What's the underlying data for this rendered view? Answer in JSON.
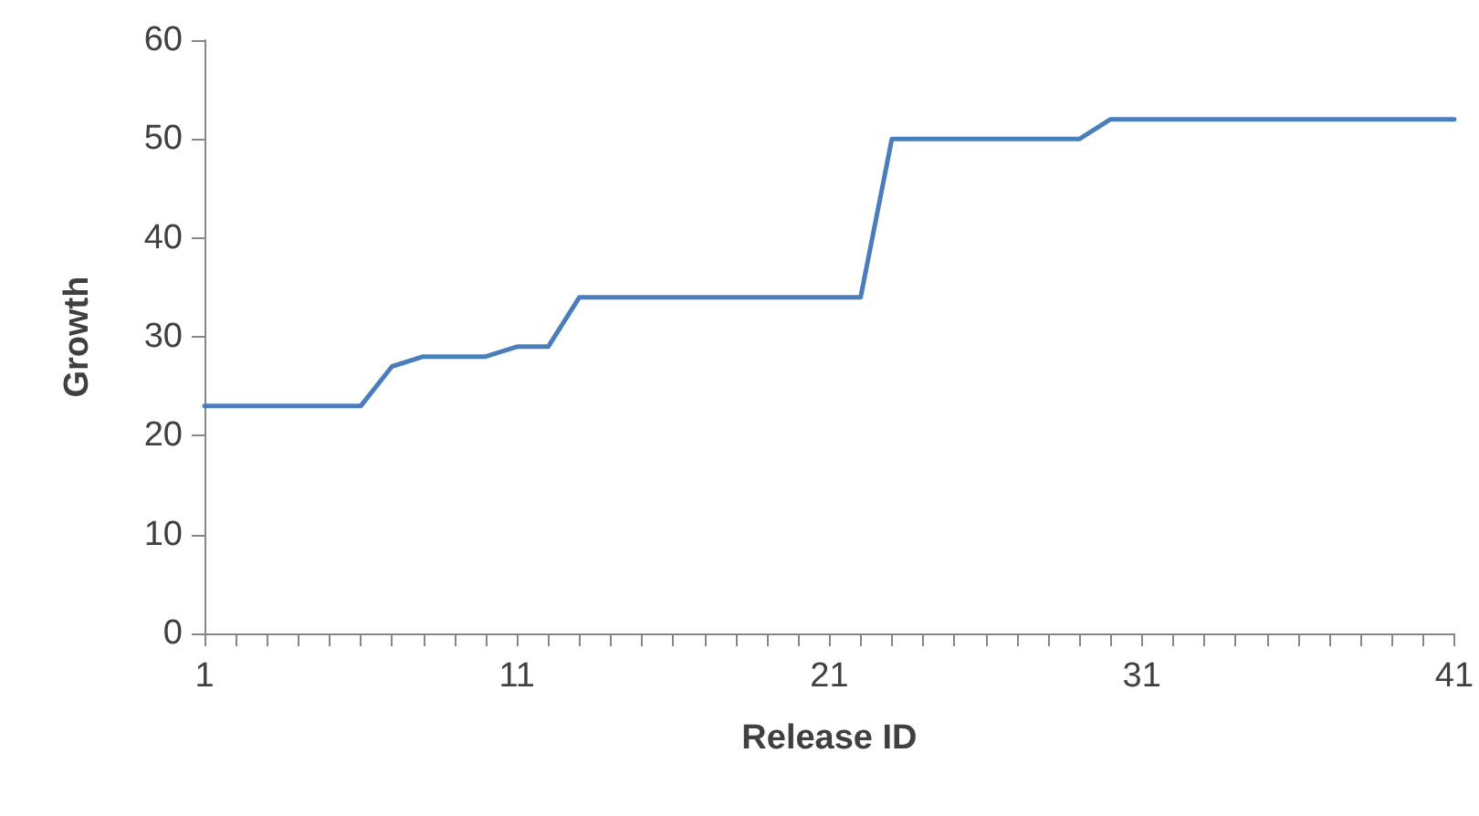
{
  "chart_data": {
    "type": "line",
    "xlabel": "Release ID",
    "ylabel": "Growth",
    "categories": [
      "1",
      null,
      null,
      null,
      null,
      null,
      null,
      null,
      null,
      null,
      "11",
      null,
      null,
      null,
      null,
      null,
      null,
      null,
      null,
      null,
      "21",
      null,
      null,
      null,
      null,
      null,
      null,
      null,
      null,
      null,
      "31",
      null,
      null,
      null,
      null,
      null,
      null,
      null,
      null,
      null,
      "41"
    ],
    "series": [
      {
        "color": "#4a7ebb",
        "values": [
          23,
          23,
          23,
          23,
          23,
          23,
          27,
          28,
          28,
          28,
          29,
          29,
          34,
          34,
          34,
          34,
          34,
          34,
          34,
          34,
          34,
          34,
          50,
          50,
          50,
          50,
          50,
          50,
          50,
          52,
          52,
          52,
          52,
          52,
          52,
          52,
          52,
          52,
          52,
          52,
          52
        ]
      }
    ],
    "ylim": [
      0,
      60
    ],
    "yticks": [
      0,
      10,
      20,
      30,
      40,
      50,
      60
    ],
    "grid": false,
    "marker": "none",
    "line_style": "solid"
  }
}
